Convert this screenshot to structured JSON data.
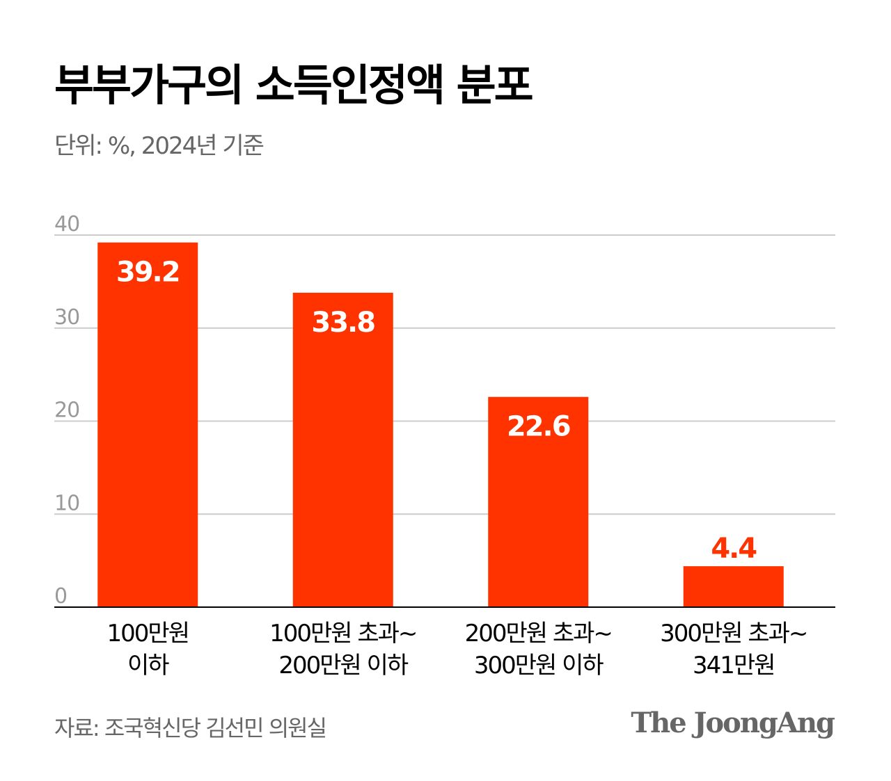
{
  "title": "부부가구의 소득인정액 분포",
  "subtitle": "단위: %, 2024년 기준",
  "source": "자료: 조국혁신당 김선민 의원실",
  "logo": "The JoongAng",
  "colors": {
    "bar": "#ff3300",
    "grid": "#cccccc",
    "axis": "#000000",
    "tick_label": "#999999"
  },
  "chart_data": {
    "type": "bar",
    "title": "부부가구의 소득인정액 분포",
    "ylabel": "",
    "xlabel": "",
    "ylim": [
      0,
      40
    ],
    "yticks": [
      0,
      10,
      20,
      30,
      40
    ],
    "grid": true,
    "categories": [
      [
        "100만원",
        "이하"
      ],
      [
        "100만원 초과~",
        "200만원 이하"
      ],
      [
        "200만원 초과~",
        "300만원 이하"
      ],
      [
        "300만원 초과~",
        "341만원"
      ]
    ],
    "values": [
      39.2,
      33.8,
      22.6,
      4.4
    ],
    "data_labels": [
      "39.2",
      "33.8",
      "22.6",
      "4.4"
    ]
  }
}
